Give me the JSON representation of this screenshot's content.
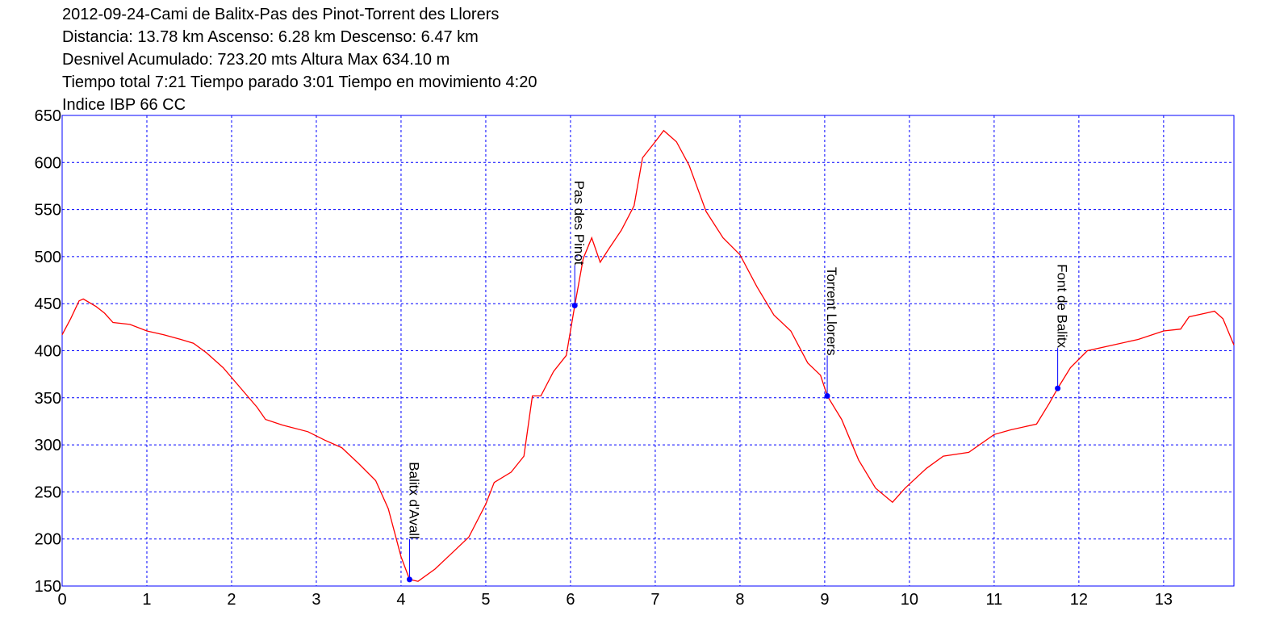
{
  "chart_data": {
    "type": "line",
    "title": [
      "2012-09-24-Cami de Balitx-Pas des Pinot-Torrent des Llorers",
      "Distancia: 13.78 km Ascenso: 6.28 km Descenso: 6.47 km",
      "Desnivel Acumulado: 723.20 mts  Altura Max 634.10 m",
      "Tiempo total 7:21 Tiempo parado 3:01 Tiempo en movimiento 4:20",
      "Indice IBP 66 CC"
    ],
    "x": [
      0,
      0.1,
      0.2,
      0.25,
      0.4,
      0.5,
      0.6,
      0.8,
      1.0,
      1.2,
      1.4,
      1.55,
      1.7,
      1.9,
      2.1,
      2.3,
      2.4,
      2.6,
      2.9,
      3.1,
      3.3,
      3.5,
      3.7,
      3.85,
      4.0,
      4.1,
      4.2,
      4.4,
      4.6,
      4.8,
      5.0,
      5.1,
      5.3,
      5.45,
      5.55,
      5.65,
      5.8,
      5.95,
      6.05,
      6.15,
      6.25,
      6.35,
      6.45,
      6.6,
      6.75,
      6.85,
      7.0,
      7.1,
      7.25,
      7.4,
      7.6,
      7.8,
      8.0,
      8.2,
      8.4,
      8.6,
      8.8,
      8.95,
      9.03,
      9.2,
      9.4,
      9.6,
      9.8,
      9.95,
      10.2,
      10.4,
      10.7,
      11.0,
      11.2,
      11.5,
      11.65,
      11.75,
      11.9,
      12.1,
      12.4,
      12.7,
      13.0,
      13.2,
      13.3,
      13.5,
      13.6,
      13.7,
      13.83
    ],
    "values": [
      417,
      434,
      453,
      455,
      447,
      440,
      430,
      428,
      421,
      417,
      412,
      408,
      398,
      382,
      361,
      340,
      327,
      321,
      314,
      305,
      297,
      280,
      262,
      232,
      181,
      157,
      155,
      168,
      185,
      202,
      237,
      260,
      271,
      288,
      352,
      352,
      378,
      395,
      448,
      498,
      520,
      494,
      508,
      528,
      554,
      605,
      622,
      634,
      622,
      597,
      548,
      520,
      502,
      468,
      438,
      421,
      387,
      374,
      352,
      327,
      284,
      254,
      239,
      254,
      275,
      288,
      292,
      311,
      316,
      322,
      344,
      360,
      382,
      400,
      406,
      412,
      421,
      423,
      436,
      440,
      442,
      434,
      406
    ],
    "color": "#ff0000",
    "waypoints": [
      {
        "label": "Balitx d'Avall",
        "x": 4.1,
        "y": 157
      },
      {
        "label": "Pas des Pinot",
        "x": 6.05,
        "y": 448
      },
      {
        "label": "Torrent Llorers",
        "x": 9.03,
        "y": 352
      },
      {
        "label": "Font de Balitx",
        "x": 11.75,
        "y": 360
      }
    ],
    "waypoint_color": "#0000ff",
    "xlim": [
      0,
      13.83
    ],
    "ylim": [
      150,
      650
    ],
    "xticks": [
      0,
      1,
      2,
      3,
      4,
      5,
      6,
      7,
      8,
      9,
      10,
      11,
      12,
      13
    ],
    "yticks": [
      150,
      200,
      250,
      300,
      350,
      400,
      450,
      500,
      550,
      600,
      650
    ],
    "grid": true
  }
}
